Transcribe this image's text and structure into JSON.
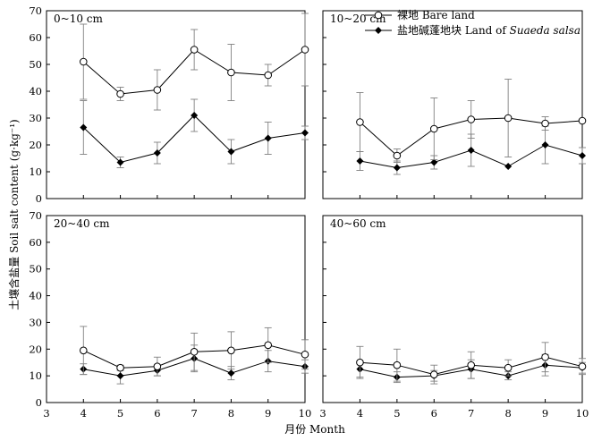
{
  "figure": {
    "ylabel": "土壤含盐量 Soil salt content (g·kg⁻¹)",
    "xlabel": "月份 Month"
  },
  "legend": [
    {
      "name": "裸地 Bare land",
      "marker": "open-circle"
    },
    {
      "name_prefix": "盐地碱蓬地块 Land of ",
      "name_italic": "Suaeda salsa",
      "marker": "filled-diamond"
    }
  ],
  "colors": {
    "line": "#000000",
    "open_marker_fill": "#ffffff",
    "filled_marker": "#000000",
    "errorbar": "#808080"
  },
  "chart_data": [
    {
      "type": "line",
      "panel": "0~10 cm",
      "x": [
        4,
        5,
        6,
        7,
        8,
        9,
        10
      ],
      "xlim": [
        3,
        10
      ],
      "ylim": [
        0,
        70
      ],
      "xticks": [
        3,
        4,
        5,
        6,
        7,
        8,
        9,
        10
      ],
      "yticks": [
        0,
        10,
        20,
        30,
        40,
        50,
        60,
        70
      ],
      "series": [
        {
          "name": "裸地 Bare land",
          "values": [
            51,
            39,
            40.5,
            55.5,
            47,
            46,
            55.5
          ],
          "err": [
            14,
            2.5,
            7.5,
            7.5,
            10.5,
            4,
            13.5
          ]
        },
        {
          "name": "盐地碱蓬地块 Land of Suaeda salsa",
          "values": [
            26.5,
            13.5,
            17,
            31,
            17.5,
            22.5,
            24.5
          ],
          "err": [
            10,
            2,
            4,
            6,
            4.5,
            6,
            2.5
          ]
        }
      ]
    },
    {
      "type": "line",
      "panel": "10~20 cm",
      "x": [
        4,
        5,
        6,
        7,
        8,
        9,
        10
      ],
      "xlim": [
        3,
        10
      ],
      "ylim": [
        0,
        70
      ],
      "xticks": [
        3,
        4,
        5,
        6,
        7,
        8,
        9,
        10
      ],
      "yticks": [
        0,
        10,
        20,
        30,
        40,
        50,
        60,
        70
      ],
      "series": [
        {
          "name": "裸地 Bare land",
          "values": [
            28.5,
            16,
            26,
            29.5,
            30,
            28,
            29
          ],
          "err": [
            11,
            2.5,
            11.5,
            7,
            14.5,
            2.5,
            0
          ]
        },
        {
          "name": "盐地碱蓬地块 Land of Suaeda salsa",
          "values": [
            14,
            11.5,
            13.5,
            18,
            12,
            20,
            16
          ],
          "err": [
            3.5,
            2.5,
            2.5,
            6,
            0,
            7,
            3
          ]
        }
      ]
    },
    {
      "type": "line",
      "panel": "20~40 cm",
      "x": [
        4,
        5,
        6,
        7,
        8,
        9,
        10
      ],
      "xlim": [
        3,
        10
      ],
      "ylim": [
        0,
        70
      ],
      "xticks": [
        3,
        4,
        5,
        6,
        7,
        8,
        9,
        10
      ],
      "yticks": [
        0,
        10,
        20,
        30,
        40,
        50,
        60,
        70
      ],
      "series": [
        {
          "name": "裸地 Bare land",
          "values": [
            19.5,
            13,
            13.5,
            19,
            19.5,
            21.5,
            18
          ],
          "err": [
            9,
            1,
            3.5,
            7,
            7,
            6.5,
            5.5
          ]
        },
        {
          "name": "盐地碱蓬地块 Land of Suaeda salsa",
          "values": [
            12.5,
            10,
            12,
            16.5,
            11,
            15.5,
            13.5
          ],
          "err": [
            2,
            3,
            2,
            5,
            2.5,
            4,
            2.5
          ]
        }
      ]
    },
    {
      "type": "line",
      "panel": "40~60 cm",
      "x": [
        4,
        5,
        6,
        7,
        8,
        9,
        10
      ],
      "xlim": [
        3,
        10
      ],
      "ylim": [
        0,
        70
      ],
      "xticks": [
        3,
        4,
        5,
        6,
        7,
        8,
        9,
        10
      ],
      "yticks": [
        0,
        10,
        20,
        30,
        40,
        50,
        60,
        70
      ],
      "series": [
        {
          "name": "裸地 Bare land",
          "values": [
            15,
            14,
            10.5,
            14,
            13,
            17,
            13.5
          ],
          "err": [
            6,
            6,
            3.5,
            5,
            3,
            5.5,
            3
          ]
        },
        {
          "name": "盐地碱蓬地块 Land of Suaeda salsa",
          "values": [
            12.5,
            9.5,
            10,
            12.5,
            10,
            14,
            13
          ],
          "err": [
            3,
            2,
            2,
            3.5,
            1.5,
            4,
            2
          ]
        }
      ]
    }
  ]
}
